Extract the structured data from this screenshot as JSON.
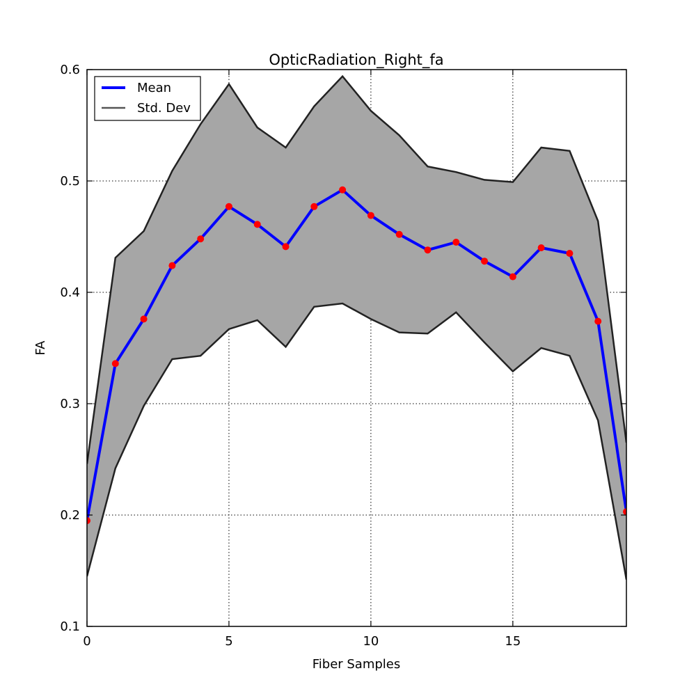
{
  "chart_data": {
    "type": "line",
    "title": "OpticRadiation_Right_fa",
    "xlabel": "Fiber Samples",
    "ylabel": "FA",
    "xlim": [
      0,
      19
    ],
    "ylim": [
      0.1,
      0.6
    ],
    "xticks": [
      0,
      5,
      10,
      15
    ],
    "xtick_labels": [
      "0",
      "5",
      "10",
      "15"
    ],
    "yticks": [
      0.1,
      0.2,
      0.3,
      0.4,
      0.5,
      0.6
    ],
    "ytick_labels": [
      "0.1",
      "0.2",
      "0.3",
      "0.4",
      "0.5",
      "0.6"
    ],
    "grid": true,
    "legend_position": "top-left",
    "x": [
      0,
      1,
      2,
      3,
      4,
      5,
      6,
      7,
      8,
      9,
      10,
      11,
      12,
      13,
      14,
      15,
      16,
      17,
      18,
      19
    ],
    "series": [
      {
        "name": "Mean",
        "color": "#0000ff",
        "marker_color": "#ff0000",
        "values": [
          0.195,
          0.336,
          0.376,
          0.424,
          0.448,
          0.477,
          0.461,
          0.441,
          0.477,
          0.492,
          0.469,
          0.452,
          0.438,
          0.445,
          0.428,
          0.414,
          0.44,
          0.435,
          0.374,
          0.203
        ]
      },
      {
        "name": "Std. Dev",
        "color": "#222222",
        "fill_color": "#a6a6a6",
        "upper": [
          0.246,
          0.431,
          0.455,
          0.509,
          0.551,
          0.587,
          0.548,
          0.53,
          0.567,
          0.594,
          0.563,
          0.541,
          0.513,
          0.508,
          0.501,
          0.499,
          0.53,
          0.527,
          0.464,
          0.265
        ],
        "lower": [
          0.145,
          0.242,
          0.298,
          0.34,
          0.343,
          0.367,
          0.375,
          0.351,
          0.387,
          0.39,
          0.376,
          0.364,
          0.363,
          0.382,
          0.355,
          0.329,
          0.35,
          0.343,
          0.285,
          0.142
        ]
      }
    ]
  }
}
